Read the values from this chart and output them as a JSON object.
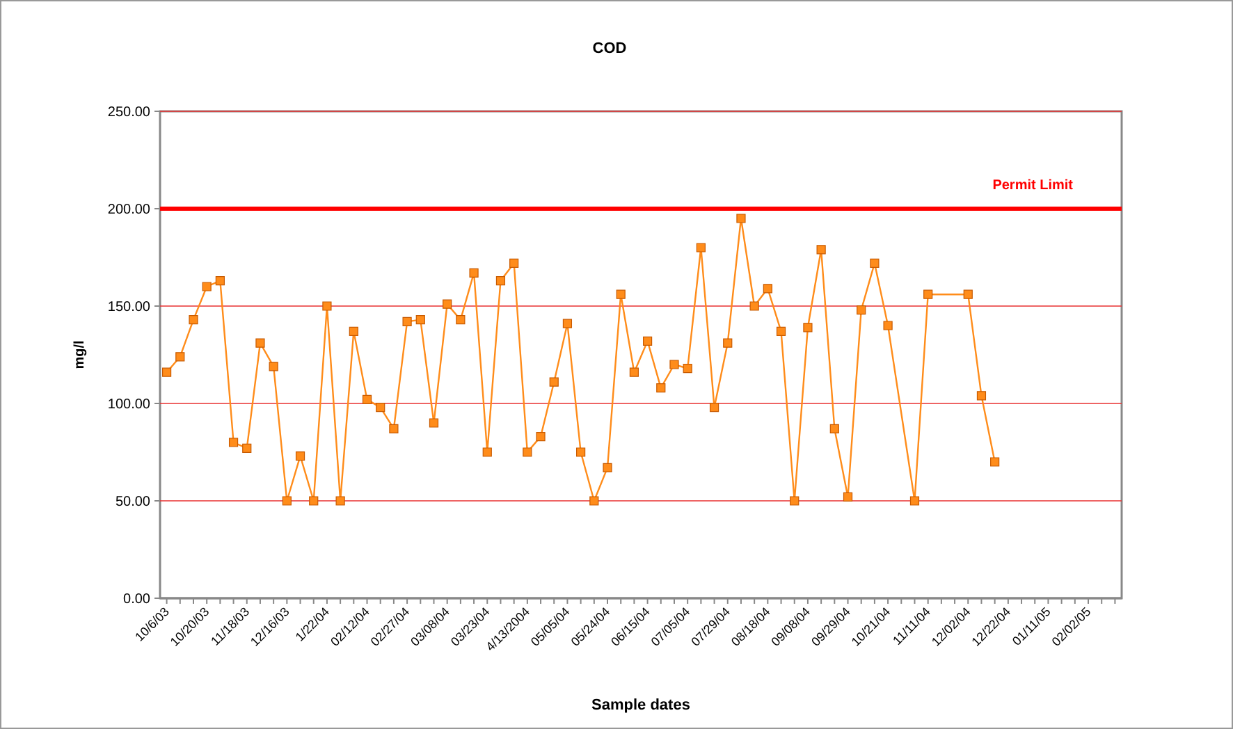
{
  "chart_data": {
    "type": "line",
    "title": "COD",
    "xlabel": "Sample dates",
    "ylabel": "mg/l",
    "categories": [
      "10/6/03",
      null,
      null,
      "10/20/03",
      null,
      null,
      "11/18/03",
      null,
      null,
      "12/16/03",
      null,
      null,
      "1/22/04",
      null,
      null,
      "02/12/04",
      null,
      null,
      "02/27/04",
      null,
      null,
      "03/08/04",
      null,
      null,
      "03/23/04",
      null,
      null,
      "4/13/2004",
      null,
      null,
      "05/05/04",
      null,
      null,
      "05/24/04",
      null,
      null,
      "06/15/04",
      null,
      null,
      "07/05/04",
      null,
      null,
      "07/29/04",
      null,
      null,
      "08/18/04",
      null,
      null,
      "09/08/04",
      null,
      null,
      "09/29/04",
      null,
      null,
      "10/21/04",
      null,
      null,
      "11/11/04",
      null,
      null,
      "12/02/04",
      null,
      null,
      "12/22/04",
      null,
      null,
      "01/11/05",
      null,
      null,
      "02/02/05",
      null,
      null
    ],
    "series": [
      {
        "color": "#ff8c1a",
        "values": [
          116,
          124,
          143,
          160,
          163,
          80,
          77,
          131,
          119,
          50,
          73,
          50,
          150,
          50,
          137,
          102,
          98,
          87,
          142,
          143,
          90,
          151,
          143,
          167,
          75,
          163,
          172,
          75,
          83,
          111,
          141,
          75,
          50,
          67,
          156,
          116,
          132,
          108,
          120,
          118,
          180,
          98,
          131,
          195,
          150,
          159,
          137,
          50,
          139,
          179,
          87,
          52,
          148,
          172,
          140,
          null,
          50,
          156,
          null,
          null,
          156,
          104,
          70,
          null,
          null,
          null,
          null,
          null,
          null,
          null,
          null,
          null
        ]
      }
    ],
    "ylim": [
      0,
      250
    ],
    "yticks": [
      {
        "value": 0,
        "label": "0.00"
      },
      {
        "value": 50,
        "label": "50.00"
      },
      {
        "value": 100,
        "label": "100.00"
      },
      {
        "value": 150,
        "label": "150.00"
      },
      {
        "value": 200,
        "label": "200.00"
      },
      {
        "value": 250,
        "label": "250.00"
      }
    ],
    "grid": "y",
    "marker": "square",
    "line_style": "solid",
    "ref_lines": [
      {
        "axis": "y",
        "value": 200,
        "label": "Permit Limit",
        "color": "#ff0000"
      }
    ]
  }
}
